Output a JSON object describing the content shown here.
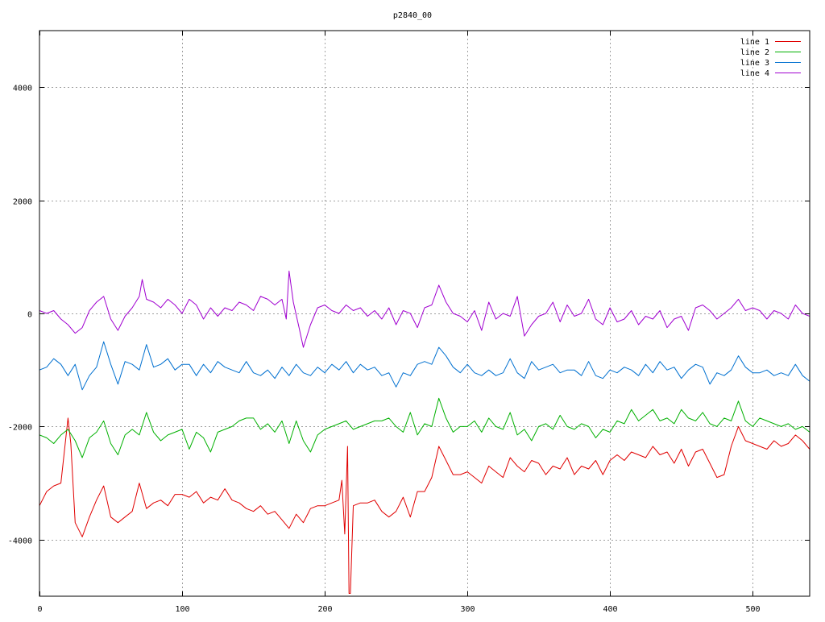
{
  "chart_data": {
    "type": "line",
    "title": "p2840_00",
    "xlabel": "",
    "ylabel": "",
    "xlim": [
      0,
      540
    ],
    "ylim": [
      -5000,
      5000
    ],
    "x_ticks": [
      0,
      100,
      200,
      300,
      400,
      500
    ],
    "y_ticks": [
      -4000,
      -2000,
      0,
      2000,
      4000
    ],
    "grid": true,
    "legend_position": "top-right",
    "series": [
      {
        "name": "line 1",
        "color": "#e00000",
        "x": [
          0,
          5,
          10,
          15,
          20,
          22,
          25,
          30,
          35,
          40,
          45,
          50,
          55,
          60,
          65,
          70,
          75,
          80,
          85,
          90,
          95,
          100,
          105,
          110,
          115,
          120,
          125,
          130,
          135,
          140,
          145,
          150,
          155,
          160,
          165,
          170,
          175,
          180,
          185,
          190,
          195,
          200,
          205,
          210,
          212,
          214,
          216,
          217,
          218,
          220,
          225,
          230,
          235,
          240,
          245,
          250,
          255,
          260,
          265,
          270,
          275,
          280,
          285,
          290,
          295,
          300,
          305,
          310,
          315,
          320,
          325,
          330,
          335,
          340,
          345,
          350,
          355,
          360,
          365,
          370,
          375,
          380,
          385,
          390,
          395,
          400,
          405,
          410,
          415,
          420,
          425,
          430,
          435,
          440,
          445,
          450,
          455,
          460,
          465,
          470,
          475,
          480,
          485,
          490,
          495,
          500,
          505,
          510,
          515,
          520,
          525,
          530,
          535,
          540
        ],
        "y": [
          -3400,
          -3150,
          -3050,
          -3000,
          -1850,
          -2300,
          -3700,
          -3950,
          -3600,
          -3300,
          -3050,
          -3600,
          -3700,
          -3600,
          -3500,
          -3000,
          -3450,
          -3350,
          -3300,
          -3400,
          -3200,
          -3200,
          -3250,
          -3150,
          -3350,
          -3250,
          -3300,
          -3100,
          -3300,
          -3350,
          -3450,
          -3500,
          -3400,
          -3550,
          -3500,
          -3650,
          -3800,
          -3550,
          -3700,
          -3450,
          -3400,
          -3400,
          -3350,
          -3300,
          -2950,
          -3900,
          -2350,
          -4950,
          -4950,
          -3400,
          -3350,
          -3350,
          -3300,
          -3500,
          -3600,
          -3500,
          -3250,
          -3600,
          -3150,
          -3150,
          -2900,
          -2350,
          -2600,
          -2850,
          -2850,
          -2800,
          -2900,
          -3000,
          -2700,
          -2800,
          -2900,
          -2550,
          -2700,
          -2800,
          -2600,
          -2650,
          -2850,
          -2700,
          -2750,
          -2550,
          -2850,
          -2700,
          -2750,
          -2600,
          -2850,
          -2600,
          -2500,
          -2600,
          -2450,
          -2500,
          -2550,
          -2350,
          -2500,
          -2450,
          -2650,
          -2400,
          -2700,
          -2450,
          -2400,
          -2650,
          -2900,
          -2850,
          -2350,
          -2000,
          -2250,
          -2300,
          -2350,
          -2400,
          -2250,
          -2350,
          -2300,
          -2150,
          -2250,
          -2400
        ]
      },
      {
        "name": "line 2",
        "color": "#00b000",
        "x": [
          0,
          5,
          10,
          15,
          20,
          25,
          30,
          35,
          40,
          45,
          50,
          55,
          60,
          65,
          70,
          75,
          80,
          85,
          90,
          95,
          100,
          105,
          110,
          115,
          120,
          125,
          130,
          135,
          140,
          145,
          150,
          155,
          160,
          165,
          170,
          175,
          180,
          185,
          190,
          195,
          200,
          205,
          210,
          215,
          220,
          225,
          230,
          235,
          240,
          245,
          250,
          255,
          260,
          265,
          270,
          275,
          280,
          285,
          290,
          295,
          300,
          305,
          310,
          315,
          320,
          325,
          330,
          335,
          340,
          345,
          350,
          355,
          360,
          365,
          370,
          375,
          380,
          385,
          390,
          395,
          400,
          405,
          410,
          415,
          420,
          425,
          430,
          435,
          440,
          445,
          450,
          455,
          460,
          465,
          470,
          475,
          480,
          485,
          490,
          495,
          500,
          505,
          510,
          515,
          520,
          525,
          530,
          535,
          540
        ],
        "y": [
          -2150,
          -2200,
          -2300,
          -2150,
          -2050,
          -2250,
          -2550,
          -2200,
          -2100,
          -1900,
          -2300,
          -2500,
          -2150,
          -2050,
          -2150,
          -1750,
          -2100,
          -2250,
          -2150,
          -2100,
          -2050,
          -2400,
          -2100,
          -2200,
          -2450,
          -2100,
          -2050,
          -2000,
          -1900,
          -1850,
          -1850,
          -2050,
          -1950,
          -2100,
          -1900,
          -2300,
          -1900,
          -2250,
          -2450,
          -2150,
          -2050,
          -2000,
          -1950,
          -1900,
          -2050,
          -2000,
          -1950,
          -1900,
          -1900,
          -1850,
          -2000,
          -2100,
          -1750,
          -2150,
          -1950,
          -2000,
          -1500,
          -1850,
          -2100,
          -2000,
          -2000,
          -1900,
          -2100,
          -1850,
          -2000,
          -2050,
          -1750,
          -2150,
          -2050,
          -2250,
          -2000,
          -1950,
          -2050,
          -1800,
          -2000,
          -2050,
          -1950,
          -2000,
          -2200,
          -2050,
          -2100,
          -1900,
          -1950,
          -1700,
          -1900,
          -1800,
          -1700,
          -1900,
          -1850,
          -1950,
          -1700,
          -1850,
          -1900,
          -1750,
          -1950,
          -2000,
          -1850,
          -1900,
          -1550,
          -1900,
          -2000,
          -1850,
          -1900,
          -1950,
          -2000,
          -1950,
          -2050,
          -2000,
          -2100
        ]
      },
      {
        "name": "line 3",
        "color": "#0070d0",
        "x": [
          0,
          5,
          10,
          15,
          20,
          25,
          30,
          35,
          40,
          45,
          50,
          55,
          60,
          65,
          70,
          75,
          80,
          85,
          90,
          95,
          100,
          105,
          110,
          115,
          120,
          125,
          130,
          135,
          140,
          145,
          150,
          155,
          160,
          165,
          170,
          175,
          180,
          185,
          190,
          195,
          200,
          205,
          210,
          215,
          220,
          225,
          230,
          235,
          240,
          245,
          250,
          255,
          260,
          265,
          270,
          275,
          280,
          285,
          290,
          295,
          300,
          305,
          310,
          315,
          320,
          325,
          330,
          335,
          340,
          345,
          350,
          355,
          360,
          365,
          370,
          375,
          380,
          385,
          390,
          395,
          400,
          405,
          410,
          415,
          420,
          425,
          430,
          435,
          440,
          445,
          450,
          455,
          460,
          465,
          470,
          475,
          480,
          485,
          490,
          495,
          500,
          505,
          510,
          515,
          520,
          525,
          530,
          535,
          540
        ],
        "y": [
          -1000,
          -950,
          -800,
          -900,
          -1100,
          -900,
          -1350,
          -1100,
          -950,
          -500,
          -900,
          -1250,
          -850,
          -900,
          -1000,
          -550,
          -950,
          -900,
          -800,
          -1000,
          -900,
          -900,
          -1100,
          -900,
          -1050,
          -850,
          -950,
          -1000,
          -1050,
          -850,
          -1050,
          -1100,
          -1000,
          -1150,
          -950,
          -1100,
          -900,
          -1050,
          -1100,
          -950,
          -1050,
          -900,
          -1000,
          -850,
          -1050,
          -900,
          -1000,
          -950,
          -1100,
          -1050,
          -1300,
          -1050,
          -1100,
          -900,
          -850,
          -900,
          -600,
          -750,
          -950,
          -1050,
          -900,
          -1050,
          -1100,
          -1000,
          -1100,
          -1050,
          -800,
          -1050,
          -1150,
          -850,
          -1000,
          -950,
          -900,
          -1050,
          -1000,
          -1000,
          -1100,
          -850,
          -1100,
          -1150,
          -1000,
          -1050,
          -950,
          -1000,
          -1100,
          -900,
          -1050,
          -850,
          -1000,
          -950,
          -1150,
          -1000,
          -900,
          -950,
          -1250,
          -1050,
          -1100,
          -1000,
          -750,
          -950,
          -1050,
          -1050,
          -1000,
          -1100,
          -1050,
          -1100,
          -900,
          -1100,
          -1200
        ]
      },
      {
        "name": "line 4",
        "color": "#a000d0",
        "x": [
          0,
          5,
          10,
          15,
          20,
          25,
          30,
          35,
          40,
          45,
          50,
          55,
          60,
          65,
          70,
          72,
          75,
          80,
          85,
          90,
          95,
          100,
          105,
          110,
          115,
          120,
          125,
          130,
          135,
          140,
          145,
          150,
          155,
          160,
          165,
          170,
          173,
          175,
          178,
          182,
          185,
          190,
          195,
          200,
          205,
          210,
          215,
          220,
          225,
          230,
          235,
          240,
          245,
          250,
          255,
          260,
          265,
          270,
          275,
          280,
          285,
          290,
          295,
          300,
          305,
          310,
          315,
          320,
          325,
          330,
          335,
          340,
          345,
          350,
          355,
          360,
          365,
          370,
          375,
          380,
          385,
          390,
          395,
          400,
          405,
          410,
          415,
          420,
          425,
          430,
          435,
          440,
          445,
          450,
          455,
          460,
          465,
          470,
          475,
          480,
          485,
          490,
          495,
          500,
          505,
          510,
          515,
          520,
          525,
          530,
          535,
          540
        ],
        "y": [
          50,
          0,
          50,
          -100,
          -200,
          -350,
          -250,
          50,
          200,
          300,
          -100,
          -300,
          -50,
          100,
          300,
          600,
          250,
          200,
          100,
          250,
          150,
          0,
          250,
          150,
          -100,
          100,
          -50,
          100,
          50,
          200,
          150,
          50,
          300,
          250,
          150,
          250,
          -100,
          750,
          200,
          -250,
          -600,
          -200,
          100,
          150,
          50,
          0,
          150,
          50,
          100,
          -50,
          50,
          -100,
          100,
          -200,
          50,
          0,
          -250,
          100,
          150,
          500,
          200,
          0,
          -50,
          -150,
          50,
          -300,
          200,
          -100,
          0,
          -50,
          300,
          -400,
          -200,
          -50,
          0,
          200,
          -150,
          150,
          -50,
          0,
          250,
          -100,
          -200,
          100,
          -150,
          -100,
          50,
          -200,
          -50,
          -100,
          50,
          -250,
          -100,
          -50,
          -300,
          100,
          150,
          50,
          -100,
          0,
          100,
          250,
          50,
          100,
          50,
          -100,
          50,
          0,
          -100,
          150,
          0,
          -50
        ]
      }
    ]
  }
}
